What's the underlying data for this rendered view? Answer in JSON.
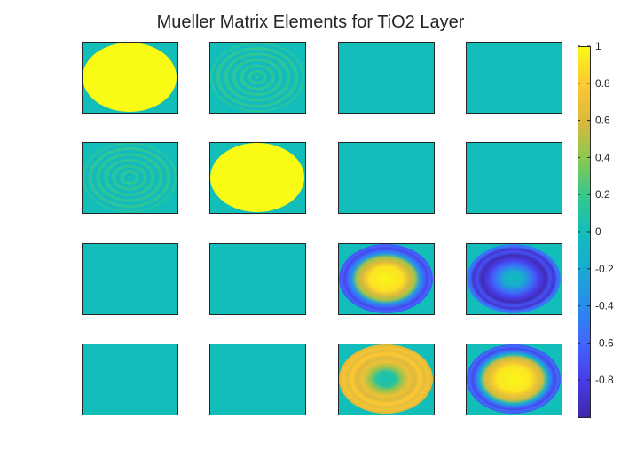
{
  "chart_data": {
    "type": "heatmap",
    "title": "Mueller Matrix Elements for TiO2 Layer",
    "grid": false,
    "layout": "4x4 subplots",
    "colormap": "parula",
    "colorbar": {
      "position": "right",
      "range": [
        -1,
        1
      ],
      "ticks": [
        1,
        0.8,
        0.6,
        0.4,
        0.2,
        0,
        -0.2,
        -0.4,
        -0.6,
        -0.8
      ],
      "tick_labels": [
        "1",
        "0.8",
        "0.6",
        "0.4",
        "0.2",
        "0",
        "-0.2",
        "-0.4",
        "-0.6",
        "-0.8"
      ]
    },
    "background_value": 0,
    "panels": [
      {
        "row": 1,
        "col": 1,
        "element": "M11",
        "pattern": "uniform-disk",
        "value": 1
      },
      {
        "row": 1,
        "col": 2,
        "element": "M12",
        "pattern": "rings",
        "mean": 0.05,
        "amplitude": 0.12,
        "rings": 6
      },
      {
        "row": 1,
        "col": 3,
        "element": "M13",
        "pattern": "zero",
        "value": 0
      },
      {
        "row": 1,
        "col": 4,
        "element": "M14",
        "pattern": "zero",
        "value": 0
      },
      {
        "row": 2,
        "col": 1,
        "element": "M21",
        "pattern": "rings",
        "mean": 0.05,
        "amplitude": 0.12,
        "rings": 6
      },
      {
        "row": 2,
        "col": 2,
        "element": "M22",
        "pattern": "uniform-disk",
        "value": 1
      },
      {
        "row": 2,
        "col": 3,
        "element": "M23",
        "pattern": "zero",
        "value": 0
      },
      {
        "row": 2,
        "col": 4,
        "element": "M24",
        "pattern": "zero",
        "value": 0
      },
      {
        "row": 3,
        "col": 1,
        "element": "M31",
        "pattern": "zero",
        "value": 0
      },
      {
        "row": 3,
        "col": 2,
        "element": "M32",
        "pattern": "zero",
        "value": 0
      },
      {
        "row": 3,
        "col": 3,
        "element": "M33",
        "pattern": "radial",
        "stops": [
          [
            0,
            0.98
          ],
          [
            0.35,
            0.9
          ],
          [
            0.5,
            0.6
          ],
          [
            0.62,
            0.45
          ],
          [
            0.72,
            -0.3
          ],
          [
            0.8,
            -0.55
          ],
          [
            0.88,
            -0.75
          ],
          [
            0.94,
            -0.6
          ],
          [
            1,
            -0.7
          ]
        ]
      },
      {
        "row": 3,
        "col": 4,
        "element": "M34",
        "pattern": "radial",
        "stops": [
          [
            0,
            -0.05
          ],
          [
            0.2,
            -0.15
          ],
          [
            0.4,
            -0.55
          ],
          [
            0.55,
            -0.8
          ],
          [
            0.68,
            -0.95
          ],
          [
            0.78,
            -0.7
          ],
          [
            0.86,
            -0.88
          ],
          [
            0.93,
            -0.55
          ],
          [
            1,
            -0.45
          ]
        ]
      },
      {
        "row": 4,
        "col": 1,
        "element": "M41",
        "pattern": "zero",
        "value": 0
      },
      {
        "row": 4,
        "col": 2,
        "element": "M42",
        "pattern": "zero",
        "value": 0
      },
      {
        "row": 4,
        "col": 3,
        "element": "M43",
        "pattern": "radial",
        "stops": [
          [
            0,
            0.05
          ],
          [
            0.2,
            0.1
          ],
          [
            0.35,
            0.45
          ],
          [
            0.5,
            0.7
          ],
          [
            0.62,
            0.6
          ],
          [
            0.72,
            0.8
          ],
          [
            0.82,
            0.65
          ],
          [
            0.9,
            0.75
          ],
          [
            1,
            0.6
          ]
        ]
      },
      {
        "row": 4,
        "col": 4,
        "element": "M44",
        "pattern": "radial",
        "stops": [
          [
            0,
            0.98
          ],
          [
            0.35,
            0.92
          ],
          [
            0.5,
            0.7
          ],
          [
            0.62,
            0.55
          ],
          [
            0.72,
            -0.1
          ],
          [
            0.8,
            -0.5
          ],
          [
            0.88,
            -0.75
          ],
          [
            0.94,
            -0.55
          ],
          [
            1,
            -0.7
          ]
        ]
      }
    ]
  }
}
